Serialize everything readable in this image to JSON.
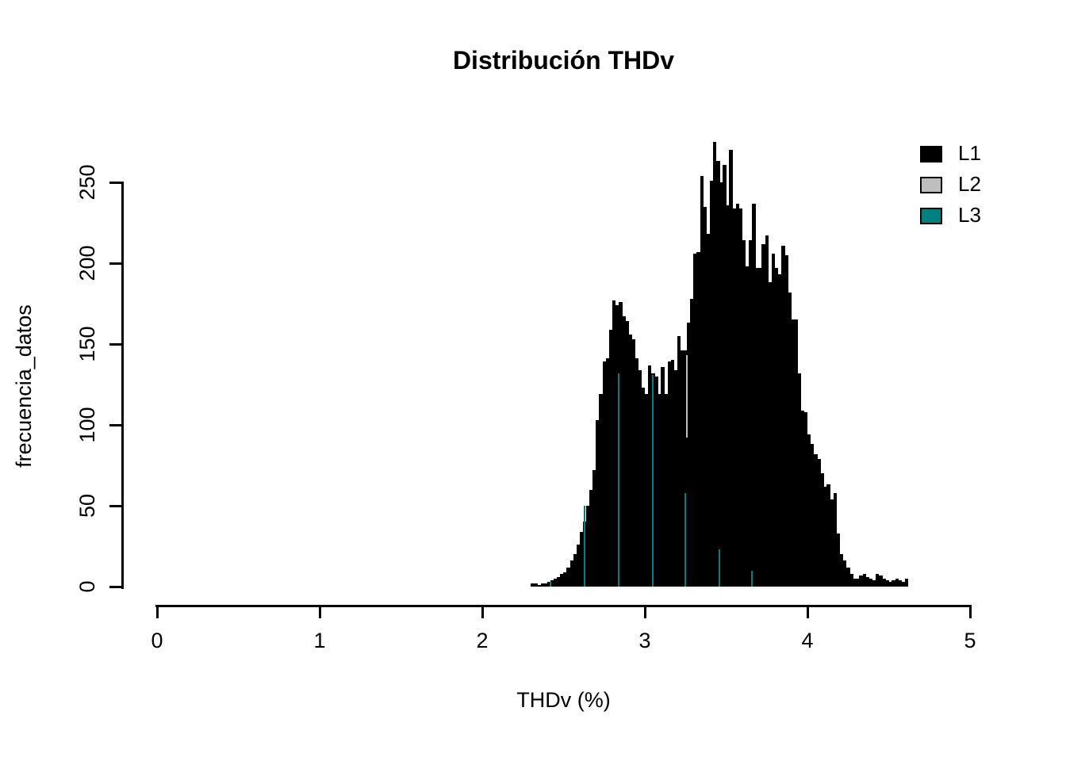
{
  "title": "Distribución THDv",
  "x_axis": {
    "label": "THDv (%)",
    "ticks": [
      "0",
      "1",
      "2",
      "3",
      "4",
      "5"
    ],
    "range": [
      0,
      5
    ]
  },
  "y_axis": {
    "label": "frecuencia_datos",
    "ticks": [
      "0",
      "50",
      "100",
      "150",
      "200",
      "250"
    ],
    "range": [
      0,
      275
    ]
  },
  "legend": {
    "position": "top-right",
    "items": [
      {
        "label": "L1",
        "color": "#000000"
      },
      {
        "label": "L2",
        "color": "#BEBEBE"
      },
      {
        "label": "L3",
        "color": "#008080"
      }
    ]
  },
  "colors": {
    "background": "#FFFFFF",
    "text": "#000000",
    "bars": "#000000",
    "l2_gray": "#BEBEBE",
    "l3_teal": "#008080"
  },
  "chart_data": {
    "type": "bar",
    "subtype": "histogram",
    "title": "Distribución THDv",
    "xlabel": "THDv (%)",
    "ylabel": "frecuencia_datos",
    "xlim": [
      0,
      5
    ],
    "ylim": [
      0,
      275
    ],
    "grid": false,
    "legend_position": "top-right",
    "bin_start": 2.3,
    "bin_width": 0.02,
    "series": [
      {
        "name": "L1",
        "color": "#000000",
        "counts": [
          2,
          2,
          1,
          2,
          2,
          3,
          4,
          5,
          6,
          8,
          9,
          12,
          16,
          20,
          26,
          34,
          40,
          50,
          60,
          72,
          103,
          119,
          139,
          141,
          159,
          177,
          174,
          176,
          167,
          164,
          156,
          153,
          141,
          134,
          123,
          119,
          137,
          132,
          130,
          119,
          136,
          119,
          139,
          140,
          134,
          155,
          146,
          146,
          163,
          178,
          206,
          207,
          254,
          235,
          218,
          251,
          275,
          263,
          250,
          261,
          236,
          270,
          234,
          237,
          234,
          214,
          198,
          214,
          237,
          197,
          197,
          212,
          217,
          188,
          206,
          197,
          193,
          211,
          205,
          182,
          165,
          165,
          132,
          109,
          108,
          94,
          88,
          82,
          79,
          70,
          62,
          63,
          54,
          58,
          33,
          20,
          16,
          12,
          8,
          5,
          5,
          7,
          8,
          6,
          5,
          4,
          8,
          7,
          5,
          4,
          3,
          4,
          5,
          4,
          3,
          5
        ]
      }
    ],
    "overlapping_series_note": "Series L2 and L3 are plotted behind L1 and are hidden except thin vertical bin-edge lines",
    "edge_lines": {
      "teal": [
        {
          "x": 2.42,
          "from": 0,
          "to": 3
        },
        {
          "x": 2.63,
          "from": 0,
          "to": 50
        },
        {
          "x": 2.84,
          "from": 0,
          "to": 132
        },
        {
          "x": 3.05,
          "from": 0,
          "to": 131
        },
        {
          "x": 3.25,
          "from": 0,
          "to": 58
        },
        {
          "x": 3.46,
          "from": 0,
          "to": 23
        },
        {
          "x": 3.66,
          "from": 0,
          "to": 10
        }
      ],
      "gray": [
        {
          "x": 3.26,
          "from": 92,
          "to": 143
        }
      ]
    }
  }
}
